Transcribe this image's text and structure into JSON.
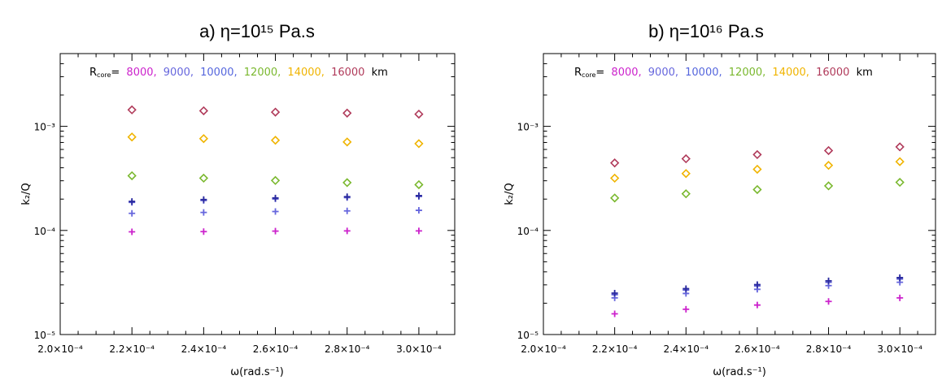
{
  "chart_data": [
    {
      "type": "scatter",
      "title": "a)  η=10¹⁵ Pa.s",
      "xlabel": "ω(rad.s⁻¹)",
      "ylabel": "k₂/Q",
      "xlim": [
        0.0002,
        0.00031
      ],
      "ylim": [
        1e-05,
        0.005
      ],
      "yscale": "log",
      "grid": false,
      "x_ticks": [
        0.0002,
        0.00022,
        0.00024,
        0.00026,
        0.00028,
        0.0003
      ],
      "x_tick_labels": [
        "2.0×10⁻⁴",
        "2.2×10⁻⁴",
        "2.4×10⁻⁴",
        "2.6×10⁻⁴",
        "2.8×10⁻⁴",
        "3.0×10⁻⁴"
      ],
      "y_ticks": [
        1e-05,
        0.0001,
        0.001
      ],
      "y_tick_labels": [
        "10⁻⁵",
        "10⁻⁴",
        "10⁻³"
      ],
      "legend": {
        "position": "top",
        "prefix": "R",
        "prefix_sub": "core",
        "prefix_suffix": "=",
        "entries": [
          "8000,",
          "9000,",
          "10000,",
          "12000,",
          "14000,",
          "16000"
        ],
        "unit": "km"
      },
      "x": [
        0.00022,
        0.00024,
        0.00026,
        0.00028,
        0.0003
      ],
      "series": [
        {
          "marker": "plus",
          "color": "#cc22cc",
          "values": [
            9.7e-05,
            9.75e-05,
            9.85e-05,
            9.9e-05,
            9.9e-05
          ]
        },
        {
          "marker": "plus",
          "color": "#6666dd",
          "values": [
            0.000146,
            0.000149,
            0.000152,
            0.000154,
            0.000156
          ]
        },
        {
          "marker": "plus",
          "color": "#5555cc",
          "values": [
            0.000186,
            0.000194,
            0.000201,
            0.000207,
            0.000212
          ]
        },
        {
          "marker": "plus",
          "color": "#2a2a9e",
          "values": [
            0.00019,
            0.000198,
            0.000205,
            0.000211,
            0.000216
          ]
        },
        {
          "marker": "diamond",
          "color": "#7ab82e",
          "values": [
            0.000335,
            0.000318,
            0.000302,
            0.000288,
            0.000275
          ]
        },
        {
          "marker": "diamond",
          "color": "#f0b400",
          "values": [
            0.00079,
            0.000762,
            0.000735,
            0.000708,
            0.000682
          ]
        },
        {
          "marker": "diamond",
          "color": "#b03a5a",
          "values": [
            0.00144,
            0.00141,
            0.00137,
            0.00134,
            0.00131
          ]
        }
      ]
    },
    {
      "type": "scatter",
      "title": "b)  η=10¹⁶ Pa.s",
      "xlabel": "ω(rad.s⁻¹)",
      "ylabel": "k₂/Q",
      "xlim": [
        0.0002,
        0.00031
      ],
      "ylim": [
        1e-05,
        0.005
      ],
      "yscale": "log",
      "grid": false,
      "x_ticks": [
        0.0002,
        0.00022,
        0.00024,
        0.00026,
        0.00028,
        0.0003
      ],
      "x_tick_labels": [
        "2.0×10⁻⁴",
        "2.2×10⁻⁴",
        "2.4×10⁻⁴",
        "2.6×10⁻⁴",
        "2.8×10⁻⁴",
        "3.0×10⁻⁴"
      ],
      "y_ticks": [
        1e-05,
        0.0001,
        0.001
      ],
      "y_tick_labels": [
        "10⁻⁵",
        "10⁻⁴",
        "10⁻³"
      ],
      "legend": {
        "position": "top",
        "prefix": "R",
        "prefix_sub": "core",
        "prefix_suffix": "=",
        "entries": [
          "8000,",
          "9000,",
          "10000,",
          "12000,",
          "14000,",
          "16000"
        ],
        "unit": "km"
      },
      "x": [
        0.00022,
        0.00024,
        0.00026,
        0.00028,
        0.0003
      ],
      "series": [
        {
          "marker": "plus",
          "color": "#cc22cc",
          "values": [
            1.58e-05,
            1.75e-05,
            1.92e-05,
            2.08e-05,
            2.25e-05
          ]
        },
        {
          "marker": "plus",
          "color": "#6666dd",
          "values": [
            2.25e-05,
            2.48e-05,
            2.72e-05,
            2.95e-05,
            3.18e-05
          ]
        },
        {
          "marker": "plus",
          "color": "#5555cc",
          "values": [
            2.42e-05,
            2.68e-05,
            2.93e-05,
            3.18e-05,
            3.42e-05
          ]
        },
        {
          "marker": "plus",
          "color": "#2a2a9e",
          "values": [
            2.5e-05,
            2.76e-05,
            3.02e-05,
            3.28e-05,
            3.52e-05
          ]
        },
        {
          "marker": "diamond",
          "color": "#7ab82e",
          "values": [
            0.000205,
            0.000225,
            0.000247,
            0.000268,
            0.00029
          ]
        },
        {
          "marker": "diamond",
          "color": "#f0b400",
          "values": [
            0.000318,
            0.000352,
            0.000387,
            0.000422,
            0.000458
          ]
        },
        {
          "marker": "diamond",
          "color": "#b03a5a",
          "values": [
            0.000445,
            0.000488,
            0.000535,
            0.000585,
            0.000635
          ]
        }
      ]
    }
  ],
  "legend_colors": [
    "#cc22cc",
    "#6666dd",
    "#5566dd",
    "#7ab82e",
    "#f0b400",
    "#b03a5a"
  ]
}
